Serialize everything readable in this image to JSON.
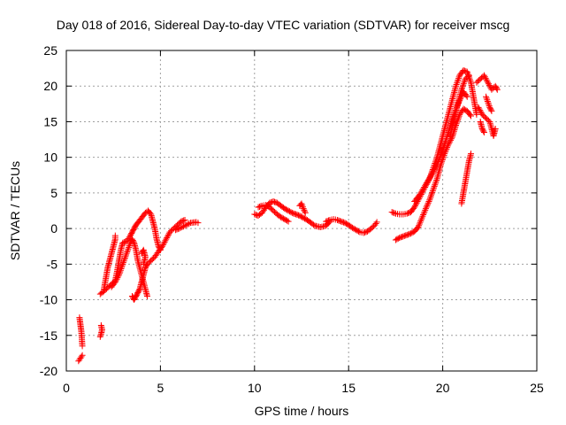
{
  "chart_data": {
    "type": "scatter",
    "title": "Day 018 of 2016, Sidereal Day-to-day VTEC variation (SDTVAR) for receiver mscg",
    "xlabel": "GPS time / hours",
    "ylabel": "SDTVAR / TECUs",
    "xlim": [
      0,
      25
    ],
    "ylim": [
      -20,
      25
    ],
    "xticks": [
      0,
      5,
      10,
      15,
      20,
      25
    ],
    "yticks": [
      -20,
      -15,
      -10,
      -5,
      0,
      5,
      10,
      15,
      20,
      25
    ],
    "grid": true,
    "marker": "+",
    "series": [
      {
        "name": "SDTVAR",
        "color": "#ff0000",
        "segments": [
          [
            [
              0.65,
              -18.6
            ],
            [
              0.75,
              -18.2
            ],
            [
              0.85,
              -17.8
            ]
          ],
          [
            [
              0.7,
              -12.5
            ],
            [
              0.75,
              -13.5
            ],
            [
              0.8,
              -14.5
            ],
            [
              0.85,
              -16.5
            ]
          ],
          [
            [
              1.8,
              -15.2
            ],
            [
              1.85,
              -14.8
            ],
            [
              1.9,
              -14.2
            ],
            [
              1.85,
              -13.6
            ]
          ],
          [
            [
              1.8,
              -9.2
            ],
            [
              2.0,
              -8.8
            ],
            [
              2.2,
              -8.3
            ],
            [
              2.4,
              -7.8
            ],
            [
              2.6,
              -7.3
            ],
            [
              2.7,
              -6.0
            ],
            [
              2.8,
              -4.5
            ],
            [
              2.9,
              -3.0
            ],
            [
              3.0,
              -2.0
            ],
            [
              3.2,
              -1.8
            ],
            [
              3.4,
              -1.0
            ],
            [
              3.5,
              -0.5
            ],
            [
              3.6,
              0.0
            ],
            [
              3.7,
              0.5
            ],
            [
              3.8,
              0.8
            ],
            [
              4.0,
              1.5
            ],
            [
              4.2,
              2.2
            ],
            [
              4.35,
              2.5
            ],
            [
              4.5,
              2.0
            ],
            [
              4.6,
              1.0
            ],
            [
              4.7,
              0.0
            ],
            [
              4.8,
              -1.5
            ],
            [
              4.9,
              -2.5
            ],
            [
              5.0,
              -3.0
            ]
          ],
          [
            [
              2.0,
              -8.5
            ],
            [
              2.1,
              -7.0
            ],
            [
              2.2,
              -5.5
            ],
            [
              2.3,
              -4.5
            ],
            [
              2.4,
              -3.5
            ],
            [
              2.5,
              -2.5
            ],
            [
              2.6,
              -1.5
            ],
            [
              2.6,
              -1.0
            ]
          ],
          [
            [
              2.4,
              -8.2
            ],
            [
              2.6,
              -7.5
            ],
            [
              2.8,
              -6.5
            ],
            [
              3.0,
              -5.0
            ],
            [
              3.2,
              -3.5
            ],
            [
              3.4,
              -2.0
            ],
            [
              3.5,
              -1.5
            ],
            [
              3.6,
              -2.0
            ],
            [
              3.7,
              -3.0
            ],
            [
              3.8,
              -4.5
            ],
            [
              4.0,
              -6.5
            ],
            [
              4.2,
              -8.5
            ],
            [
              4.3,
              -9.5
            ]
          ],
          [
            [
              3.5,
              -9.5
            ],
            [
              3.6,
              -10.0
            ],
            [
              3.7,
              -9.5
            ],
            [
              3.8,
              -9.0
            ],
            [
              3.9,
              -8.5
            ],
            [
              4.0,
              -7.5
            ],
            [
              4.1,
              -6.5
            ],
            [
              4.2,
              -5.5
            ],
            [
              4.3,
              -5.0
            ],
            [
              4.5,
              -4.5
            ],
            [
              4.7,
              -4.0
            ],
            [
              4.9,
              -3.2
            ],
            [
              5.1,
              -2.5
            ],
            [
              5.3,
              -1.5
            ],
            [
              5.5,
              -0.5
            ],
            [
              5.7,
              0.0
            ],
            [
              5.9,
              0.5
            ],
            [
              6.1,
              1.0
            ],
            [
              6.3,
              1.2
            ]
          ],
          [
            [
              4.0,
              -3.5
            ],
            [
              4.1,
              -3.0
            ],
            [
              4.2,
              -4.0
            ],
            [
              4.1,
              -5.0
            ]
          ],
          [
            [
              5.8,
              -0.2
            ],
            [
              6.0,
              0.0
            ],
            [
              6.3,
              0.4
            ],
            [
              6.6,
              0.8
            ],
            [
              6.9,
              0.9
            ],
            [
              7.0,
              0.8
            ]
          ],
          [
            [
              10.0,
              2.0
            ],
            [
              10.2,
              1.8
            ],
            [
              10.4,
              2.2
            ],
            [
              10.6,
              3.0
            ],
            [
              10.8,
              3.6
            ],
            [
              11.0,
              3.8
            ],
            [
              11.2,
              3.6
            ],
            [
              11.4,
              3.2
            ],
            [
              11.6,
              2.8
            ],
            [
              11.8,
              2.5
            ],
            [
              12.0,
              2.2
            ],
            [
              12.2,
              2.0
            ],
            [
              12.4,
              1.8
            ],
            [
              12.6,
              1.5
            ],
            [
              12.8,
              1.2
            ],
            [
              13.0,
              0.8
            ],
            [
              13.2,
              0.4
            ],
            [
              13.5,
              0.2
            ],
            [
              13.8,
              0.4
            ],
            [
              14.0,
              1.0
            ]
          ],
          [
            [
              10.2,
              3.0
            ],
            [
              10.4,
              3.2
            ],
            [
              10.6,
              3.3
            ],
            [
              10.8,
              3.0
            ],
            [
              11.0,
              2.5
            ],
            [
              11.2,
              2.0
            ],
            [
              11.4,
              1.6
            ],
            [
              11.6,
              1.3
            ],
            [
              11.8,
              1.0
            ]
          ],
          [
            [
              12.4,
              3.2
            ],
            [
              12.5,
              3.5
            ],
            [
              12.6,
              2.8
            ],
            [
              12.7,
              2.2
            ]
          ],
          [
            [
              13.8,
              1.0
            ],
            [
              14.0,
              1.2
            ],
            [
              14.2,
              1.3
            ],
            [
              14.4,
              1.2
            ],
            [
              14.6,
              1.0
            ],
            [
              14.8,
              0.8
            ],
            [
              15.0,
              0.5
            ],
            [
              15.2,
              0.1
            ],
            [
              15.4,
              -0.2
            ],
            [
              15.6,
              -0.5
            ],
            [
              15.8,
              -0.6
            ],
            [
              16.0,
              -0.4
            ],
            [
              16.2,
              0.0
            ],
            [
              16.4,
              0.5
            ],
            [
              16.5,
              0.9
            ]
          ],
          [
            [
              17.3,
              2.3
            ],
            [
              17.5,
              2.1
            ],
            [
              17.7,
              2.0
            ],
            [
              17.9,
              2.0
            ],
            [
              18.1,
              2.1
            ],
            [
              18.3,
              2.3
            ],
            [
              18.5,
              3.0
            ],
            [
              18.7,
              4.0
            ],
            [
              18.9,
              5.0
            ],
            [
              19.1,
              6.0
            ],
            [
              19.3,
              7.0
            ],
            [
              19.5,
              8.5
            ],
            [
              19.7,
              10.0
            ],
            [
              19.9,
              12.0
            ],
            [
              20.1,
              14.0
            ],
            [
              20.3,
              16.0
            ],
            [
              20.5,
              18.0
            ],
            [
              20.7,
              20.0
            ],
            [
              20.9,
              21.5
            ],
            [
              21.1,
              22.2
            ],
            [
              21.3,
              22.0
            ],
            [
              21.5,
              20.5
            ],
            [
              21.6,
              19.0
            ],
            [
              21.7,
              17.5
            ],
            [
              21.8,
              16.0
            ]
          ],
          [
            [
              17.5,
              -1.6
            ],
            [
              17.7,
              -1.3
            ],
            [
              17.9,
              -1.1
            ],
            [
              18.1,
              -0.9
            ],
            [
              18.3,
              -0.7
            ],
            [
              18.5,
              -0.4
            ],
            [
              18.7,
              0.2
            ],
            [
              18.9,
              1.5
            ],
            [
              19.1,
              2.8
            ],
            [
              19.3,
              4.0
            ],
            [
              19.5,
              5.5
            ],
            [
              19.7,
              7.0
            ],
            [
              19.9,
              9.0
            ],
            [
              20.1,
              10.5
            ],
            [
              20.3,
              11.8
            ],
            [
              20.5,
              12.8
            ],
            [
              20.7,
              14.5
            ],
            [
              20.9,
              16.0
            ],
            [
              21.1,
              16.8
            ],
            [
              21.3,
              16.5
            ],
            [
              21.5,
              15.8
            ]
          ],
          [
            [
              18.5,
              3.8
            ],
            [
              18.8,
              4.8
            ],
            [
              19.1,
              6.2
            ],
            [
              19.4,
              7.5
            ],
            [
              19.7,
              9.0
            ],
            [
              20.0,
              11.0
            ],
            [
              20.3,
              13.5
            ],
            [
              20.6,
              16.0
            ],
            [
              20.9,
              18.0
            ],
            [
              21.1,
              19.2
            ],
            [
              21.3,
              18.5
            ]
          ],
          [
            [
              20.4,
              13.0
            ],
            [
              20.6,
              15.5
            ],
            [
              20.8,
              17.5
            ],
            [
              21.0,
              19.5
            ],
            [
              21.2,
              21.0
            ],
            [
              21.4,
              21.5
            ]
          ],
          [
            [
              21.8,
              20.5
            ],
            [
              22.0,
              21.0
            ],
            [
              22.2,
              21.5
            ],
            [
              22.4,
              20.5
            ],
            [
              22.6,
              19.5
            ],
            [
              22.8,
              20.0
            ],
            [
              22.9,
              19.5
            ]
          ],
          [
            [
              21.9,
              17.0
            ],
            [
              22.1,
              16.0
            ],
            [
              22.3,
              15.5
            ],
            [
              22.5,
              15.0
            ],
            [
              22.7,
              13.0
            ],
            [
              22.8,
              14.0
            ]
          ],
          [
            [
              22.0,
              15.0
            ],
            [
              22.1,
              14.0
            ],
            [
              22.2,
              13.5
            ]
          ],
          [
            [
              22.3,
              18.5
            ],
            [
              22.5,
              17.0
            ],
            [
              22.6,
              16.5
            ]
          ],
          [
            [
              21.0,
              3.5
            ],
            [
              21.1,
              5.0
            ],
            [
              21.2,
              6.5
            ],
            [
              21.3,
              8.0
            ],
            [
              21.4,
              9.5
            ],
            [
              21.5,
              10.5
            ]
          ]
        ]
      }
    ]
  }
}
